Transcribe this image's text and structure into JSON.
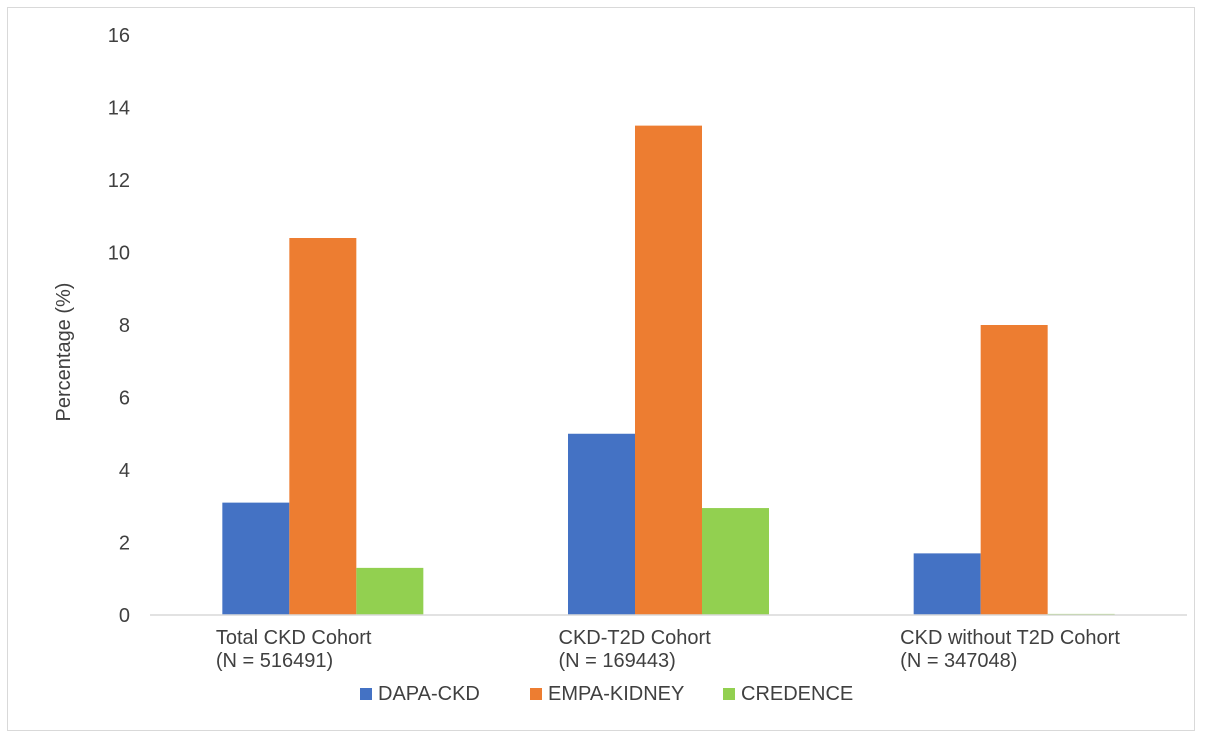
{
  "chart_data": {
    "type": "bar",
    "categories": [
      [
        "Total CKD Cohort",
        "(N = 516491)"
      ],
      [
        "CKD-T2D Cohort",
        "(N = 169443)"
      ],
      [
        "CKD without T2D Cohort",
        "(N = 347048)"
      ]
    ],
    "series": [
      {
        "name": "DAPA-CKD",
        "color": "#4472c4",
        "values": [
          3.1,
          5.0,
          1.7
        ]
      },
      {
        "name": "EMPA-KIDNEY",
        "color": "#ed7d31",
        "values": [
          10.4,
          13.5,
          8.0
        ]
      },
      {
        "name": "CREDENCE",
        "color": "#92d050",
        "values": [
          1.3,
          2.95,
          0.03
        ]
      }
    ],
    "ylabel": "Percentage (%)",
    "xlabel": "",
    "ylim": [
      0,
      16
    ],
    "yticks": [
      0,
      2,
      4,
      6,
      8,
      10,
      12,
      14,
      16
    ],
    "grid": false,
    "legend": "bottom"
  }
}
